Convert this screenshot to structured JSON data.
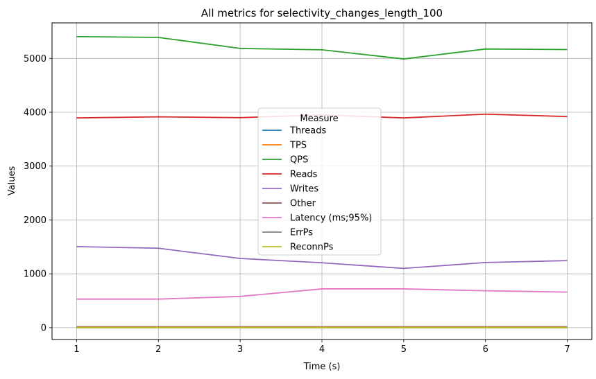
{
  "chart_data": {
    "type": "line",
    "title": "All metrics for selectivity_changes_length_100",
    "xlabel": "Time (s)",
    "ylabel": "Values",
    "x": [
      1,
      2,
      3,
      4,
      5,
      6,
      7
    ],
    "xlim": [
      0.7,
      7.3
    ],
    "ylim": [
      -220,
      5660
    ],
    "xticks": [
      1,
      2,
      3,
      4,
      5,
      6,
      7
    ],
    "yticks": [
      0,
      1000,
      2000,
      3000,
      4000,
      5000
    ],
    "grid": true,
    "legend": {
      "title": "Measure",
      "placement": "center"
    },
    "series": [
      {
        "name": "Threads",
        "color": "#1f77b4",
        "values": [
          16,
          16,
          16,
          16,
          16,
          16,
          16
        ]
      },
      {
        "name": "TPS",
        "color": "#ff7f0e",
        "values": [
          10,
          10,
          10,
          9,
          9,
          10,
          10
        ]
      },
      {
        "name": "QPS",
        "color": "#2ca02c",
        "values": [
          5405,
          5390,
          5185,
          5160,
          4990,
          5175,
          5165
        ]
      },
      {
        "name": "Reads",
        "color": "#d62728",
        "values": [
          3895,
          3915,
          3900,
          3950,
          3895,
          3965,
          3920
        ]
      },
      {
        "name": "Writes",
        "color": "#9467bd",
        "values": [
          1505,
          1475,
          1285,
          1205,
          1100,
          1210,
          1245
        ]
      },
      {
        "name": "Other",
        "color": "#8c564b",
        "values": [
          0,
          0,
          0,
          0,
          0,
          0,
          0
        ]
      },
      {
        "name": "Latency (ms;95%)",
        "color": "#e377c2",
        "values": [
          530,
          530,
          580,
          720,
          720,
          685,
          660
        ]
      },
      {
        "name": "ErrPs",
        "color": "#7f7f7f",
        "values": [
          0,
          0,
          0,
          0,
          0,
          0,
          0
        ]
      },
      {
        "name": "ReconnPs",
        "color": "#bcbd22",
        "values": [
          0,
          0,
          0,
          0,
          0,
          0,
          0
        ]
      }
    ]
  }
}
